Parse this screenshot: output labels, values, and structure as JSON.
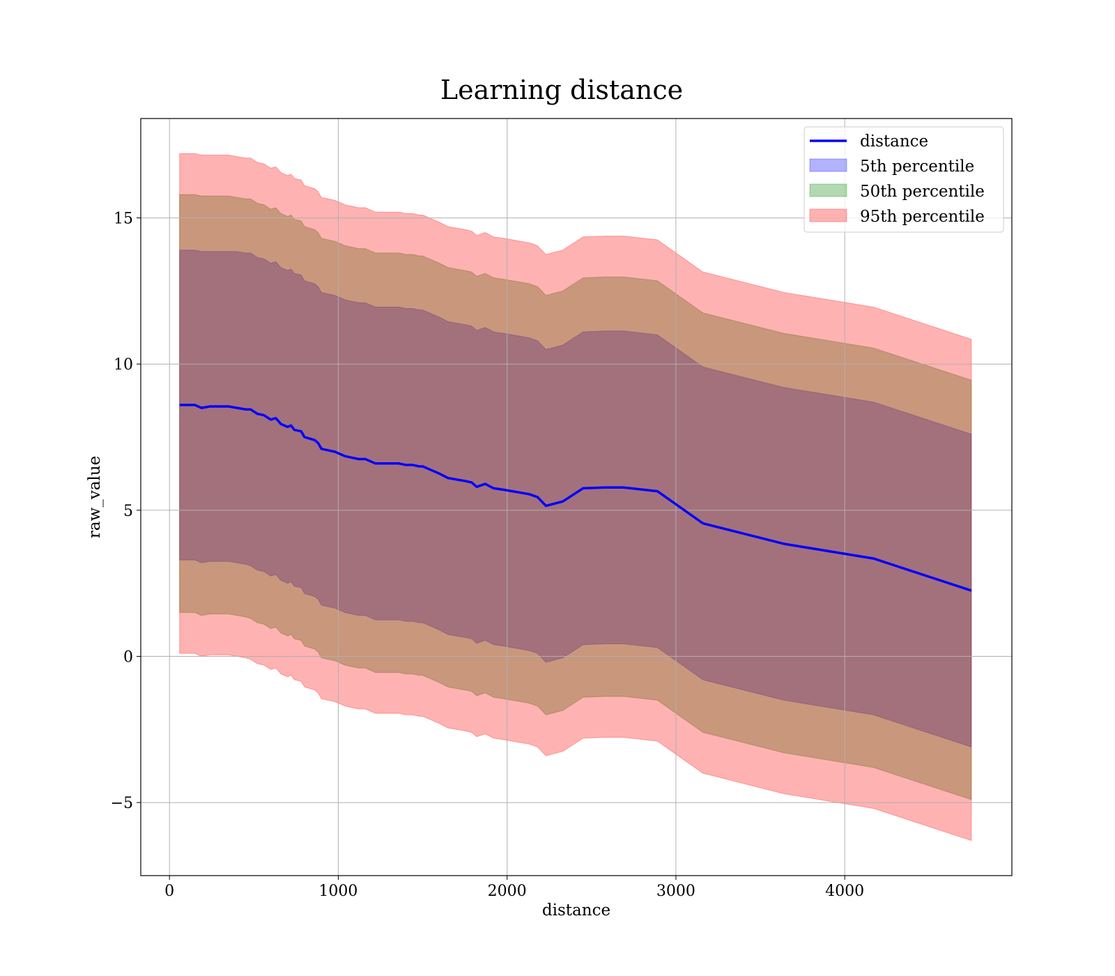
{
  "chart_data": {
    "type": "area",
    "title": "Learning distance",
    "xlabel": "distance",
    "ylabel": "raw_value",
    "xlim": [
      -170,
      4990
    ],
    "ylim": [
      -7.5,
      18.4
    ],
    "xticks": [
      0,
      1000,
      2000,
      3000,
      4000
    ],
    "xtick_labels": [
      "0",
      "1000",
      "2000",
      "3000",
      "4000"
    ],
    "yticks": [
      -5,
      0,
      5,
      10,
      15
    ],
    "ytick_labels": [
      "−5",
      "0",
      "5",
      "10",
      "15"
    ],
    "grid": true,
    "legend_position": "top-right",
    "legend": [
      {
        "label": "distance",
        "kind": "line",
        "color": "#0000ff"
      },
      {
        "label": "5th percentile",
        "kind": "patch",
        "color": "#0000ff"
      },
      {
        "label": "50th percentile",
        "kind": "patch",
        "color": "#008000"
      },
      {
        "label": "95th percentile",
        "kind": "patch",
        "color": "#ff0000"
      }
    ],
    "x": [
      60,
      150,
      190,
      240,
      290,
      320,
      350,
      400,
      450,
      480,
      520,
      560,
      600,
      630,
      660,
      700,
      720,
      740,
      780,
      800,
      830,
      860,
      880,
      900,
      940,
      980,
      1000,
      1040,
      1080,
      1120,
      1160,
      1200,
      1220,
      1280,
      1320,
      1360,
      1400,
      1440,
      1480,
      1500,
      1560,
      1600,
      1650,
      1700,
      1750,
      1790,
      1820,
      1870,
      1920,
      1980,
      2030,
      2080,
      2130,
      2180,
      2230,
      2330,
      2450,
      2580,
      2690,
      2890,
      3160,
      3640,
      4170,
      4750
    ],
    "series": [
      {
        "name": "distance",
        "kind": "line",
        "color": "#0000ff",
        "values": [
          8.6,
          8.6,
          8.5,
          8.55,
          8.55,
          8.55,
          8.55,
          8.5,
          8.45,
          8.45,
          8.3,
          8.25,
          8.1,
          8.15,
          7.95,
          7.85,
          7.9,
          7.75,
          7.7,
          7.5,
          7.45,
          7.4,
          7.3,
          7.1,
          7.05,
          7.0,
          6.95,
          6.85,
          6.8,
          6.75,
          6.75,
          6.65,
          6.6,
          6.6,
          6.6,
          6.6,
          6.55,
          6.55,
          6.5,
          6.5,
          6.35,
          6.25,
          6.1,
          6.05,
          6.0,
          5.95,
          5.8,
          5.9,
          5.75,
          5.7,
          5.65,
          5.6,
          5.55,
          5.45,
          5.15,
          5.3,
          5.75,
          5.78,
          5.78,
          5.65,
          4.55,
          3.85,
          3.35,
          2.25
        ]
      },
      {
        "name": "5th percentile",
        "kind": "band",
        "color": "#0000ff",
        "upper": [
          13.9,
          13.9,
          13.85,
          13.85,
          13.85,
          13.85,
          13.85,
          13.85,
          13.8,
          13.8,
          13.65,
          13.6,
          13.45,
          13.5,
          13.3,
          13.2,
          13.25,
          13.1,
          13.05,
          12.85,
          12.8,
          12.75,
          12.65,
          12.45,
          12.4,
          12.35,
          12.3,
          12.2,
          12.15,
          12.1,
          12.1,
          12.0,
          11.95,
          11.95,
          11.95,
          11.95,
          11.9,
          11.9,
          11.85,
          11.85,
          11.7,
          11.6,
          11.45,
          11.4,
          11.35,
          11.3,
          11.15,
          11.25,
          11.1,
          11.05,
          11.0,
          10.95,
          10.9,
          10.8,
          10.5,
          10.65,
          11.1,
          11.13,
          11.13,
          11.0,
          9.9,
          9.2,
          8.7,
          7.6
        ],
        "lower": [
          3.3,
          3.3,
          3.2,
          3.25,
          3.25,
          3.25,
          3.25,
          3.2,
          3.15,
          3.1,
          2.95,
          2.9,
          2.75,
          2.8,
          2.6,
          2.5,
          2.55,
          2.4,
          2.35,
          2.15,
          2.1,
          2.05,
          1.95,
          1.75,
          1.7,
          1.65,
          1.6,
          1.5,
          1.45,
          1.4,
          1.4,
          1.3,
          1.25,
          1.25,
          1.25,
          1.25,
          1.2,
          1.2,
          1.15,
          1.15,
          1.0,
          0.9,
          0.75,
          0.7,
          0.65,
          0.6,
          0.45,
          0.55,
          0.4,
          0.35,
          0.3,
          0.25,
          0.2,
          0.1,
          -0.2,
          -0.05,
          0.4,
          0.43,
          0.43,
          0.3,
          -0.8,
          -1.5,
          -2.0,
          -3.1
        ]
      },
      {
        "name": "50th percentile",
        "kind": "band",
        "color": "#008000",
        "upper": [
          15.8,
          15.8,
          15.75,
          15.75,
          15.75,
          15.75,
          15.75,
          15.7,
          15.65,
          15.65,
          15.5,
          15.45,
          15.3,
          15.35,
          15.15,
          15.05,
          15.1,
          14.95,
          14.9,
          14.7,
          14.65,
          14.6,
          14.5,
          14.3,
          14.25,
          14.2,
          14.15,
          14.05,
          14.0,
          13.95,
          13.95,
          13.85,
          13.8,
          13.8,
          13.8,
          13.8,
          13.75,
          13.75,
          13.7,
          13.7,
          13.55,
          13.45,
          13.3,
          13.25,
          13.2,
          13.15,
          13.0,
          13.1,
          12.95,
          12.9,
          12.85,
          12.8,
          12.75,
          12.65,
          12.35,
          12.5,
          12.95,
          12.98,
          12.98,
          12.85,
          11.75,
          11.05,
          10.55,
          9.45
        ],
        "lower": [
          1.5,
          1.5,
          1.4,
          1.45,
          1.45,
          1.45,
          1.45,
          1.4,
          1.35,
          1.3,
          1.15,
          1.1,
          0.95,
          1.0,
          0.8,
          0.7,
          0.75,
          0.6,
          0.55,
          0.35,
          0.3,
          0.25,
          0.15,
          -0.05,
          -0.1,
          -0.15,
          -0.2,
          -0.3,
          -0.35,
          -0.4,
          -0.4,
          -0.5,
          -0.55,
          -0.55,
          -0.55,
          -0.55,
          -0.6,
          -0.6,
          -0.65,
          -0.65,
          -0.8,
          -0.9,
          -1.05,
          -1.1,
          -1.15,
          -1.2,
          -1.35,
          -1.25,
          -1.4,
          -1.45,
          -1.5,
          -1.55,
          -1.6,
          -1.7,
          -2.0,
          -1.85,
          -1.4,
          -1.37,
          -1.37,
          -1.5,
          -2.6,
          -3.3,
          -3.8,
          -4.9
        ]
      },
      {
        "name": "95th percentile",
        "kind": "band",
        "color": "#ff0000",
        "upper": [
          17.2,
          17.2,
          17.15,
          17.15,
          17.15,
          17.15,
          17.15,
          17.1,
          17.05,
          17.05,
          16.9,
          16.85,
          16.7,
          16.75,
          16.55,
          16.45,
          16.5,
          16.35,
          16.3,
          16.1,
          16.05,
          16.0,
          15.9,
          15.7,
          15.65,
          15.6,
          15.55,
          15.45,
          15.4,
          15.35,
          15.35,
          15.25,
          15.2,
          15.2,
          15.2,
          15.2,
          15.15,
          15.15,
          15.1,
          15.1,
          14.95,
          14.85,
          14.7,
          14.65,
          14.6,
          14.55,
          14.4,
          14.5,
          14.35,
          14.3,
          14.25,
          14.2,
          14.15,
          14.05,
          13.75,
          13.9,
          14.35,
          14.38,
          14.38,
          14.25,
          13.15,
          12.45,
          11.95,
          10.85
        ],
        "lower": [
          0.1,
          0.1,
          0.0,
          0.05,
          0.05,
          0.05,
          0.05,
          0.0,
          -0.05,
          -0.1,
          -0.25,
          -0.3,
          -0.45,
          -0.4,
          -0.6,
          -0.7,
          -0.65,
          -0.8,
          -0.85,
          -1.05,
          -1.1,
          -1.15,
          -1.25,
          -1.45,
          -1.5,
          -1.55,
          -1.6,
          -1.7,
          -1.75,
          -1.8,
          -1.8,
          -1.9,
          -1.95,
          -1.95,
          -1.95,
          -1.95,
          -2.0,
          -2.0,
          -2.05,
          -2.05,
          -2.2,
          -2.3,
          -2.45,
          -2.5,
          -2.55,
          -2.6,
          -2.75,
          -2.65,
          -2.8,
          -2.85,
          -2.9,
          -2.95,
          -3.0,
          -3.1,
          -3.4,
          -3.25,
          -2.8,
          -2.77,
          -2.77,
          -2.9,
          -4.0,
          -4.7,
          -5.2,
          -6.3
        ]
      }
    ]
  }
}
